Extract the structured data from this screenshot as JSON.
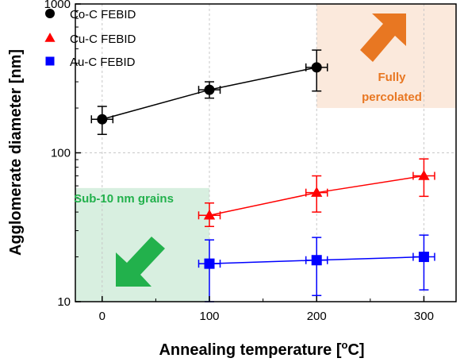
{
  "chart_data": {
    "type": "scatter",
    "xlabel": "Annealing temperature [",
    "xlabel_unit_sup": "o",
    "xlabel_unit_tail": "C]",
    "ylabel": "Agglomerate diameter [nm]",
    "x_ticks": [
      "0",
      "100",
      "200",
      "300"
    ],
    "y_ticks": [
      "10",
      "100",
      "1000"
    ],
    "xlim": [
      -25,
      330
    ],
    "ylim": [
      10,
      1000
    ],
    "y_scale": "log",
    "grid": true,
    "legend_position": "top-left",
    "series": [
      {
        "name": "Co-C FEBID",
        "marker": "circle",
        "color": "#000000",
        "x": [
          0,
          100,
          200
        ],
        "y": [
          168,
          265,
          375
        ],
        "y_low": [
          133,
          233,
          260
        ],
        "y_high": [
          205,
          300,
          490
        ],
        "x_err": [
          10,
          10,
          10
        ]
      },
      {
        "name": "Cu-C FEBID",
        "marker": "triangle",
        "color": "#ff0000",
        "x": [
          100,
          200,
          300
        ],
        "y": [
          38,
          54,
          70
        ],
        "y_low": [
          32,
          40,
          51
        ],
        "y_high": [
          46,
          70,
          91
        ],
        "x_err": [
          10,
          10,
          10
        ]
      },
      {
        "name": "Au-C FEBID",
        "marker": "square",
        "color": "#0000ff",
        "x": [
          100,
          200,
          300
        ],
        "y": [
          18,
          19,
          20
        ],
        "y_low": [
          10,
          11,
          12
        ],
        "y_high": [
          26,
          27,
          28
        ],
        "x_err": [
          10,
          10,
          10
        ]
      }
    ],
    "annotations": [
      {
        "text_line1": "Fully",
        "text_line2": "percolated",
        "color": "#e87722",
        "fill": "#fbe9dc",
        "region_x": [
          200,
          330
        ],
        "region_y": [
          200,
          1000
        ],
        "arrow": "up-right"
      },
      {
        "text_line1": "Sub-10 nm grains",
        "color": "#22b14c",
        "fill": "#d8efe0",
        "region_x": [
          -25,
          100
        ],
        "region_y": [
          10,
          58
        ],
        "arrow": "down-left"
      }
    ]
  }
}
